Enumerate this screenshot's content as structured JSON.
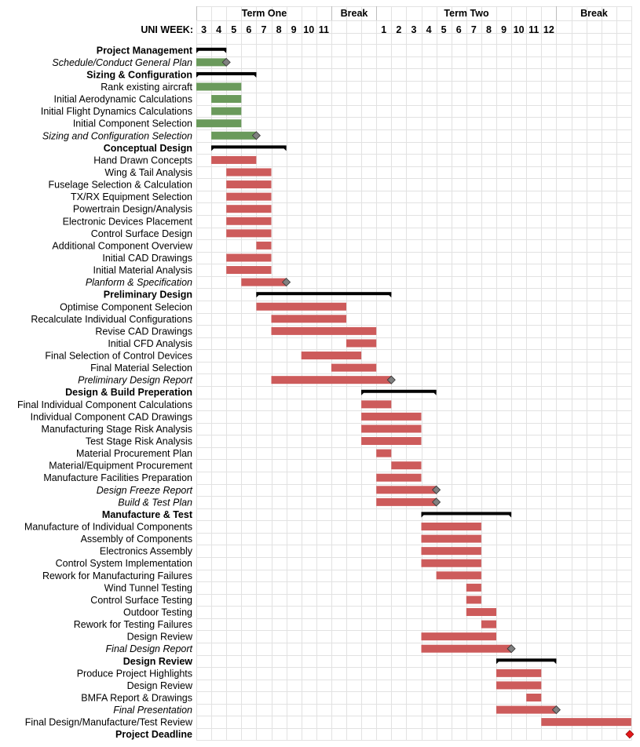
{
  "chart_data": {
    "type": "gantt",
    "week_row_label": "UNI WEEK:",
    "periods": [
      {
        "label": "Term One",
        "start": 0,
        "end": 9
      },
      {
        "label": "Break",
        "start": 9,
        "end": 12
      },
      {
        "label": "Term Two",
        "start": 12,
        "end": 24
      },
      {
        "label": "Break",
        "start": 24,
        "end": 29
      }
    ],
    "week_labels": [
      "3",
      "4",
      "5",
      "6",
      "7",
      "8",
      "9",
      "10",
      "11",
      "",
      "",
      "",
      "1",
      "2",
      "3",
      "4",
      "5",
      "6",
      "7",
      "8",
      "9",
      "10",
      "11",
      "12",
      "",
      "",
      "",
      "",
      ""
    ],
    "tasks": [
      {
        "name": "Project Management",
        "kind": "group",
        "start": 0,
        "end": 2
      },
      {
        "name": "Schedule/Conduct General Plan",
        "kind": "milestone",
        "start": 0,
        "end": 2,
        "color": "green"
      },
      {
        "name": "Sizing & Configuration",
        "kind": "group",
        "start": 0,
        "end": 4
      },
      {
        "name": "Rank existing aircraft",
        "kind": "task",
        "start": 0,
        "end": 3,
        "color": "green"
      },
      {
        "name": "Initial Aerodynamic Calculations",
        "kind": "task",
        "start": 1,
        "end": 3,
        "color": "green"
      },
      {
        "name": "Initial Flight Dynamics Calculations",
        "kind": "task",
        "start": 1,
        "end": 3,
        "color": "green"
      },
      {
        "name": "Initial Component Selection",
        "kind": "task",
        "start": 0,
        "end": 3,
        "color": "green"
      },
      {
        "name": "Sizing and Configuration Selection",
        "kind": "milestone",
        "start": 1,
        "end": 4,
        "color": "green"
      },
      {
        "name": "Conceptual Design",
        "kind": "group",
        "start": 1,
        "end": 6
      },
      {
        "name": "Hand Drawn Concepts",
        "kind": "task",
        "start": 1,
        "end": 4,
        "color": "red"
      },
      {
        "name": "Wing & Tail Analysis",
        "kind": "task",
        "start": 2,
        "end": 5,
        "color": "red"
      },
      {
        "name": "Fuselage Selection & Calculation",
        "kind": "task",
        "start": 2,
        "end": 5,
        "color": "red"
      },
      {
        "name": "TX/RX Equipment Selection",
        "kind": "task",
        "start": 2,
        "end": 5,
        "color": "red"
      },
      {
        "name": "Powertrain Design/Analysis",
        "kind": "task",
        "start": 2,
        "end": 5,
        "color": "red"
      },
      {
        "name": "Electronic Devices Placement",
        "kind": "task",
        "start": 2,
        "end": 5,
        "color": "red"
      },
      {
        "name": "Control Surface Design",
        "kind": "task",
        "start": 2,
        "end": 5,
        "color": "red"
      },
      {
        "name": "Additional Component Overview",
        "kind": "task",
        "start": 4,
        "end": 5,
        "color": "red"
      },
      {
        "name": "Initial CAD Drawings",
        "kind": "task",
        "start": 2,
        "end": 5,
        "color": "red"
      },
      {
        "name": "Initial Material Analysis",
        "kind": "task",
        "start": 2,
        "end": 5,
        "color": "red"
      },
      {
        "name": "Planform & Specification",
        "kind": "milestone",
        "start": 3,
        "end": 6,
        "color": "red"
      },
      {
        "name": "Preliminary Design",
        "kind": "group",
        "start": 4,
        "end": 13
      },
      {
        "name": "Optimise Component Selecion",
        "kind": "task",
        "start": 4,
        "end": 10,
        "color": "red"
      },
      {
        "name": "Recalculate Individual Configurations",
        "kind": "task",
        "start": 5,
        "end": 10,
        "color": "red"
      },
      {
        "name": "Revise CAD Drawings",
        "kind": "task",
        "start": 5,
        "end": 12,
        "color": "red"
      },
      {
        "name": "Initial CFD Analysis",
        "kind": "task",
        "start": 10,
        "end": 12,
        "color": "red"
      },
      {
        "name": "Final Selection of Control Devices",
        "kind": "task",
        "start": 7,
        "end": 11,
        "color": "red"
      },
      {
        "name": "Final Material Selection",
        "kind": "task",
        "start": 9,
        "end": 12,
        "color": "red"
      },
      {
        "name": "Preliminary Design Report",
        "kind": "milestone",
        "start": 5,
        "end": 13,
        "color": "red"
      },
      {
        "name": "Design & Build Preperation",
        "kind": "group",
        "start": 11,
        "end": 16
      },
      {
        "name": "Final Individual Component Calculations",
        "kind": "task",
        "start": 11,
        "end": 13,
        "color": "red"
      },
      {
        "name": "Individual Component CAD Drawings",
        "kind": "task",
        "start": 11,
        "end": 15,
        "color": "red"
      },
      {
        "name": "Manufacturing Stage Risk Analysis",
        "kind": "task",
        "start": 11,
        "end": 15,
        "color": "red"
      },
      {
        "name": "Test Stage Risk Analysis",
        "kind": "task",
        "start": 11,
        "end": 15,
        "color": "red"
      },
      {
        "name": "Material Procurement Plan",
        "kind": "task",
        "start": 12,
        "end": 13,
        "color": "red"
      },
      {
        "name": "Material/Equipment Procurement",
        "kind": "task",
        "start": 13,
        "end": 15,
        "color": "red"
      },
      {
        "name": "Manufacture Facilities Preparation",
        "kind": "task",
        "start": 12,
        "end": 15,
        "color": "red"
      },
      {
        "name": "Design Freeze Report",
        "kind": "milestone",
        "start": 12,
        "end": 16,
        "color": "red"
      },
      {
        "name": "Build & Test Plan",
        "kind": "milestone",
        "start": 12,
        "end": 16,
        "color": "red"
      },
      {
        "name": "Manufacture & Test",
        "kind": "group",
        "start": 15,
        "end": 21
      },
      {
        "name": "Manufacture of Individual Components",
        "kind": "task",
        "start": 15,
        "end": 19,
        "color": "red"
      },
      {
        "name": "Assembly of Components",
        "kind": "task",
        "start": 15,
        "end": 19,
        "color": "red"
      },
      {
        "name": "Electronics Assembly",
        "kind": "task",
        "start": 15,
        "end": 19,
        "color": "red"
      },
      {
        "name": "Control System Implementation",
        "kind": "task",
        "start": 15,
        "end": 19,
        "color": "red"
      },
      {
        "name": "Rework for Manufacturing Failures",
        "kind": "task",
        "start": 16,
        "end": 19,
        "color": "red"
      },
      {
        "name": "Wind Tunnel Testing",
        "kind": "task",
        "start": 18,
        "end": 19,
        "color": "red"
      },
      {
        "name": "Control Surface Testing",
        "kind": "task",
        "start": 18,
        "end": 19,
        "color": "red"
      },
      {
        "name": "Outdoor Testing",
        "kind": "task",
        "start": 18,
        "end": 20,
        "color": "red"
      },
      {
        "name": "Rework for Testing Failures",
        "kind": "task",
        "start": 19,
        "end": 20,
        "color": "red"
      },
      {
        "name": "Design Review",
        "kind": "task",
        "start": 15,
        "end": 20,
        "color": "red"
      },
      {
        "name": "Final Design Report",
        "kind": "milestone",
        "start": 15,
        "end": 21,
        "color": "red"
      },
      {
        "name": "Design Review",
        "kind": "group",
        "start": 20,
        "end": 24
      },
      {
        "name": "Produce Project Highlights",
        "kind": "task",
        "start": 20,
        "end": 23,
        "color": "red"
      },
      {
        "name": "Design Review",
        "kind": "task",
        "start": 20,
        "end": 23,
        "color": "red"
      },
      {
        "name": "BMFA Report & Drawings",
        "kind": "task",
        "start": 22,
        "end": 23,
        "color": "red"
      },
      {
        "name": "Final Presentation",
        "kind": "milestone",
        "start": 20,
        "end": 24,
        "color": "red"
      },
      {
        "name": "Final Design/Manufacture/Test Review",
        "kind": "task",
        "start": 23,
        "end": 29,
        "color": "red"
      },
      {
        "name": "Project Deadline",
        "kind": "deadline",
        "start": 29,
        "end": 29,
        "color": "deadline"
      }
    ],
    "colors": {
      "green": "#6a9a5b",
      "red": "#cd5b5b",
      "group": "#000000",
      "milestone": "#808080",
      "deadline": "#e3191b",
      "grid": "#e2e2e2"
    }
  }
}
